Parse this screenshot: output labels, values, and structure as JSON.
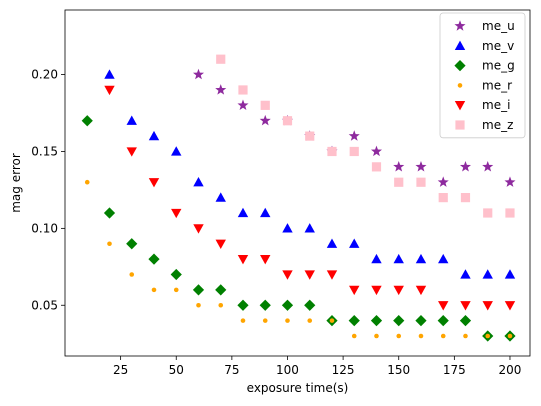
{
  "chart_data": {
    "type": "scatter",
    "title": "",
    "xlabel": "exposure time(s)",
    "ylabel": "mag error",
    "xlim": [
      0,
      209
    ],
    "ylim": [
      0.017,
      0.242
    ],
    "xticks": [
      25,
      50,
      75,
      100,
      125,
      150,
      175,
      200
    ],
    "yticks": [
      0.05,
      0.1,
      0.15,
      0.2
    ],
    "ytick_labels": [
      "0.05",
      "0.10",
      "0.15",
      "0.20"
    ],
    "grid": false,
    "legend_position": "top-right",
    "series": [
      {
        "name": "me_u",
        "marker": "star",
        "color": "#8e2a9e",
        "x": [
          60,
          70,
          80,
          90,
          100,
          110,
          120,
          130,
          140,
          150,
          160,
          170,
          180,
          190,
          200
        ],
        "y": [
          0.2,
          0.19,
          0.18,
          0.17,
          0.17,
          0.16,
          0.15,
          0.16,
          0.15,
          0.14,
          0.14,
          0.13,
          0.14,
          0.14,
          0.13
        ]
      },
      {
        "name": "me_v",
        "marker": "triangle-up",
        "color": "#0000ff",
        "x": [
          20,
          30,
          40,
          50,
          60,
          70,
          80,
          90,
          100,
          110,
          120,
          130,
          140,
          150,
          160,
          170,
          180,
          190,
          200
        ],
        "y": [
          0.2,
          0.17,
          0.16,
          0.15,
          0.13,
          0.12,
          0.11,
          0.11,
          0.1,
          0.1,
          0.09,
          0.09,
          0.08,
          0.08,
          0.08,
          0.08,
          0.07,
          0.07,
          0.07
        ]
      },
      {
        "name": "me_g",
        "marker": "diamond",
        "color": "#008000",
        "x": [
          10,
          20,
          30,
          40,
          50,
          60,
          70,
          80,
          90,
          100,
          110,
          120,
          130,
          140,
          150,
          160,
          170,
          180,
          190,
          200
        ],
        "y": [
          0.17,
          0.11,
          0.09,
          0.08,
          0.07,
          0.06,
          0.06,
          0.05,
          0.05,
          0.05,
          0.05,
          0.04,
          0.04,
          0.04,
          0.04,
          0.04,
          0.04,
          0.04,
          0.03,
          0.03
        ]
      },
      {
        "name": "me_r",
        "marker": "dot",
        "color": "#ffa500",
        "x": [
          10,
          20,
          30,
          40,
          50,
          60,
          70,
          80,
          90,
          100,
          110,
          120,
          130,
          140,
          150,
          160,
          170,
          180,
          190,
          200
        ],
        "y": [
          0.13,
          0.09,
          0.07,
          0.06,
          0.06,
          0.05,
          0.05,
          0.04,
          0.04,
          0.04,
          0.04,
          0.04,
          0.03,
          0.03,
          0.03,
          0.03,
          0.03,
          0.03,
          0.03,
          0.03
        ]
      },
      {
        "name": "me_i",
        "marker": "triangle-down",
        "color": "#ff0000",
        "x": [
          20,
          30,
          40,
          50,
          60,
          70,
          80,
          90,
          100,
          110,
          120,
          130,
          140,
          150,
          160,
          170,
          180,
          190,
          200
        ],
        "y": [
          0.19,
          0.15,
          0.13,
          0.11,
          0.1,
          0.09,
          0.08,
          0.08,
          0.07,
          0.07,
          0.07,
          0.06,
          0.06,
          0.06,
          0.06,
          0.05,
          0.05,
          0.05,
          0.05
        ]
      },
      {
        "name": "me_z",
        "marker": "square",
        "color": "#ffc0cb",
        "x": [
          70,
          80,
          90,
          100,
          110,
          120,
          130,
          140,
          150,
          160,
          170,
          180,
          190,
          200
        ],
        "y": [
          0.21,
          0.19,
          0.18,
          0.17,
          0.16,
          0.15,
          0.15,
          0.14,
          0.13,
          0.13,
          0.12,
          0.12,
          0.11,
          0.11
        ]
      }
    ]
  }
}
